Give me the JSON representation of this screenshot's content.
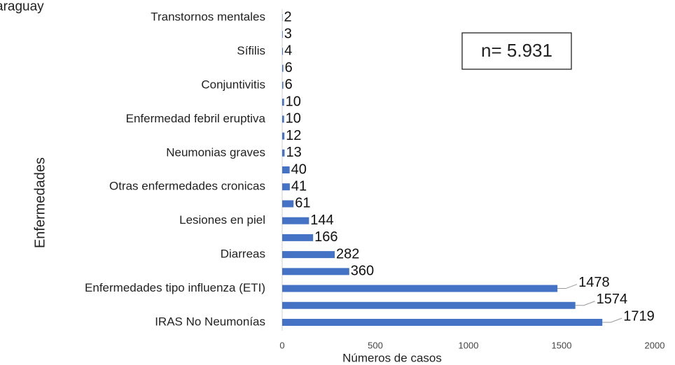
{
  "chart_data": {
    "type": "hbar",
    "title": "araguay",
    "annotation": "n= 5.931",
    "xlabel": "Números de casos",
    "ylabel": "Enfermedades",
    "categories": [
      "Transtornos mentales",
      null,
      "Sífilis",
      null,
      "Conjuntivitis",
      null,
      "Enfermedad febril eruptiva",
      null,
      "Neumonias graves",
      null,
      "Otras enfermedades cronicas",
      null,
      "Lesiones en piel",
      null,
      "Diarreas",
      null,
      "Enfermedades tipo influenza (ETI)",
      null,
      "IRAS No Neumonías"
    ],
    "values": [
      2,
      3,
      4,
      6,
      6,
      10,
      10,
      12,
      13,
      40,
      41,
      61,
      144,
      166,
      282,
      360,
      1478,
      1574,
      1719
    ],
    "color": "#4472c4",
    "xlim": [
      0,
      2000
    ],
    "xticks": [
      0,
      500,
      1000,
      1500,
      2000
    ]
  }
}
